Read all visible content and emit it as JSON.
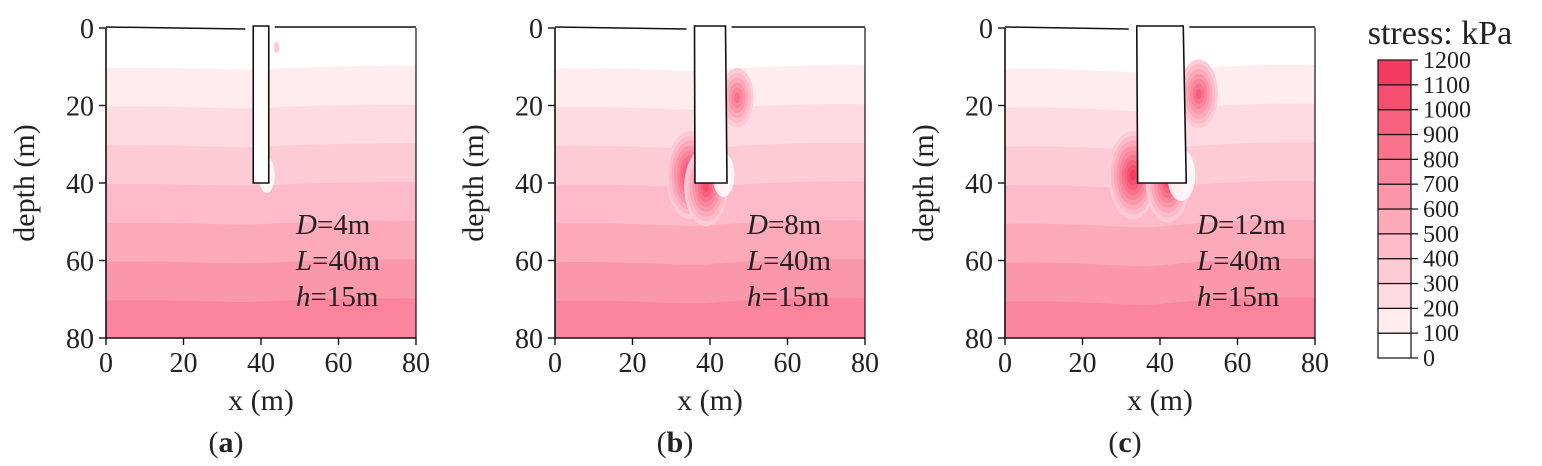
{
  "chart_data": [
    {
      "type": "heatmap",
      "panel_label": "a",
      "xlabel": "x (m)",
      "ylabel": "depth (m)",
      "xlim": [
        0,
        80
      ],
      "ylim": [
        0,
        80
      ],
      "y_inverted": true,
      "x_ticks": [
        "0",
        "20",
        "40",
        "60",
        "80"
      ],
      "y_ticks": [
        "0",
        "20",
        "40",
        "60",
        "80"
      ],
      "annotation": [
        {
          "var": "D",
          "value": "=4m"
        },
        {
          "var": "L",
          "value": "=40m"
        },
        {
          "var": "h",
          "value": "=15m"
        }
      ],
      "pile": {
        "x_left": 38,
        "x_right": 42,
        "tip_depth": 40
      },
      "stress_bands_kpa": [
        {
          "depth_from": 0,
          "depth_to": 10,
          "stress": 0
        },
        {
          "depth_from": 10,
          "depth_to": 20,
          "stress": 100
        },
        {
          "depth_from": 20,
          "depth_to": 30,
          "stress": 200
        },
        {
          "depth_from": 30,
          "depth_to": 40,
          "stress": 300
        },
        {
          "depth_from": 40,
          "depth_to": 50,
          "stress": 400
        },
        {
          "depth_from": 50,
          "depth_to": 60,
          "stress": 500
        },
        {
          "depth_from": 60,
          "depth_to": 70,
          "stress": 600
        },
        {
          "depth_from": 70,
          "depth_to": 80,
          "stress": 700
        }
      ],
      "stress_concentrations_kpa": [
        {
          "x": 44,
          "depth": 5,
          "stress": 300
        }
      ]
    },
    {
      "type": "heatmap",
      "panel_label": "b",
      "xlabel": "x (m)",
      "ylabel": "depth (m)",
      "xlim": [
        0,
        80
      ],
      "ylim": [
        0,
        80
      ],
      "y_inverted": true,
      "x_ticks": [
        "0",
        "20",
        "40",
        "60",
        "80"
      ],
      "y_ticks": [
        "0",
        "20",
        "40",
        "60",
        "80"
      ],
      "annotation": [
        {
          "var": "D",
          "value": "=8m"
        },
        {
          "var": "L",
          "value": "=40m"
        },
        {
          "var": "h",
          "value": "=15m"
        }
      ],
      "pile": {
        "x_left": 36,
        "x_right": 44,
        "tip_depth": 40
      },
      "stress_bands_kpa": [
        {
          "depth_from": 0,
          "depth_to": 10,
          "stress": 0
        },
        {
          "depth_from": 10,
          "depth_to": 20,
          "stress": 100
        },
        {
          "depth_from": 20,
          "depth_to": 30,
          "stress": 200
        },
        {
          "depth_from": 30,
          "depth_to": 40,
          "stress": 300
        },
        {
          "depth_from": 40,
          "depth_to": 50,
          "stress": 400
        },
        {
          "depth_from": 50,
          "depth_to": 60,
          "stress": 500
        },
        {
          "depth_from": 60,
          "depth_to": 70,
          "stress": 600
        },
        {
          "depth_from": 70,
          "depth_to": 80,
          "stress": 700
        }
      ],
      "stress_concentrations_kpa": [
        {
          "x": 47,
          "depth": 18,
          "stress": 800
        },
        {
          "x": 35,
          "depth": 38,
          "stress": 1100
        },
        {
          "x": 39,
          "depth": 41,
          "stress": 1000
        }
      ]
    },
    {
      "type": "heatmap",
      "panel_label": "c",
      "xlabel": "x (m)",
      "ylabel": "depth (m)",
      "xlim": [
        0,
        80
      ],
      "ylim": [
        0,
        80
      ],
      "y_inverted": true,
      "x_ticks": [
        "0",
        "20",
        "40",
        "60",
        "80"
      ],
      "y_ticks": [
        "0",
        "20",
        "40",
        "60",
        "80"
      ],
      "annotation": [
        {
          "var": "D",
          "value": "=12m"
        },
        {
          "var": "L",
          "value": "=40m"
        },
        {
          "var": "h",
          "value": "=15m"
        }
      ],
      "pile": {
        "x_left": 34,
        "x_right": 46,
        "tip_depth": 40
      },
      "stress_bands_kpa": [
        {
          "depth_from": 0,
          "depth_to": 10,
          "stress": 0
        },
        {
          "depth_from": 10,
          "depth_to": 20,
          "stress": 100
        },
        {
          "depth_from": 20,
          "depth_to": 30,
          "stress": 200
        },
        {
          "depth_from": 30,
          "depth_to": 40,
          "stress": 300
        },
        {
          "depth_from": 40,
          "depth_to": 50,
          "stress": 400
        },
        {
          "depth_from": 50,
          "depth_to": 60,
          "stress": 500
        },
        {
          "depth_from": 60,
          "depth_to": 70,
          "stress": 600
        },
        {
          "depth_from": 70,
          "depth_to": 80,
          "stress": 700
        }
      ],
      "stress_concentrations_kpa": [
        {
          "x": 50,
          "depth": 17,
          "stress": 900
        },
        {
          "x": 33,
          "depth": 38,
          "stress": 1100
        },
        {
          "x": 42,
          "depth": 40,
          "stress": 1000
        }
      ]
    }
  ],
  "colorbar": {
    "title": "stress: kPa",
    "levels": [
      "0",
      "100",
      "200",
      "300",
      "400",
      "500",
      "600",
      "700",
      "800",
      "900",
      "1000",
      "1100",
      "1200"
    ],
    "colors": [
      "#ffffff",
      "#ffecef",
      "#fedbe2",
      "#fdcbd5",
      "#fdbac8",
      "#fca9ba",
      "#fb97ab",
      "#fa859c",
      "#f9738d",
      "#f8617e",
      "#f64e6e",
      "#f43b5f",
      "#f1284f"
    ]
  }
}
